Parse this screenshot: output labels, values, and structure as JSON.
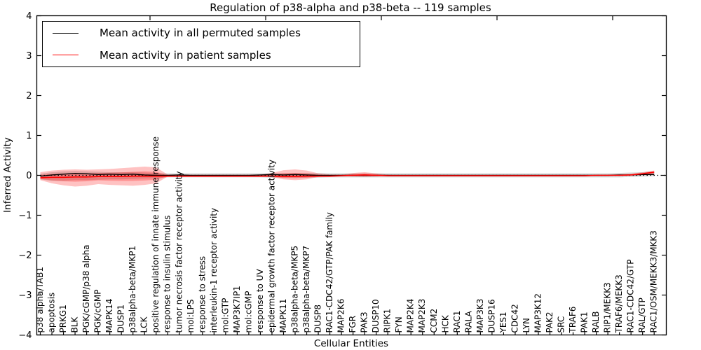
{
  "figure": {
    "title": "Regulation of p38-alpha and p38-beta -- 119 samples",
    "background_color": "#ffffff",
    "axis_color": "#000000"
  },
  "legend": {
    "items": [
      {
        "label": "Mean activity in all permuted samples",
        "color": "#000000"
      },
      {
        "label": "Mean activity in patient samples",
        "color": "#ff0000"
      }
    ]
  },
  "chart_data": {
    "type": "line",
    "title": "Regulation of p38-alpha and p38-beta -- 119 samples",
    "xlabel": "Cellular Entities",
    "ylabel": "Inferred Activity",
    "ylim": [
      -4,
      4
    ],
    "ytick_labels": [
      "4",
      "3",
      "2",
      "1",
      "0",
      "−1",
      "−2",
      "−3",
      "−4"
    ],
    "ytick_values": [
      4,
      3,
      2,
      1,
      0,
      -1,
      -2,
      -3,
      -4
    ],
    "grid": false,
    "legend_position": "upper left",
    "zero_reference_line": 0,
    "categories": [
      "p38 alpha/TAB1",
      "apoptosis",
      "PRKG1",
      "BLK",
      "PGK/cGMP/p38 alpha",
      "PGK/cGMP",
      "MAPK14",
      "DUSP1",
      "p38alpha-beta/MKP1",
      "LCK",
      "positive regulation of innate immune response",
      "response to insulin stimulus",
      "tumor necrosis factor receptor activity",
      "mol:LPS",
      "response to stress",
      "interleukin-1 receptor activity",
      "mol:GTP",
      "MAP3K7IP1",
      "mol:cGMP",
      "response to UV",
      "epidermal growth factor receptor activity",
      "MAPK11",
      "p38alpha-beta/MKP5",
      "p38alpha-beta/MKP7",
      "DUSP8",
      "RAC1-CDC42/GTP/PAK family",
      "MAP2K6",
      "FGR",
      "PAK3",
      "DUSP10",
      "RIPK1",
      "FYN",
      "MAP2K4",
      "MAP2K3",
      "CCM2",
      "HCK",
      "RAC1",
      "RALA",
      "MAP3K3",
      "DUSP16",
      "YES1",
      "CDC42",
      "LYN",
      "MAP3K12",
      "PAK2",
      "SRC",
      "TRAF6",
      "PAK1",
      "RALB",
      "RIP1/MEKK3",
      "TRAF6/MEKK3",
      "RAC1-CDC42/GTP",
      "RAL/GTP",
      "RAC1/OSM/MEKK3/MKK3"
    ],
    "series": [
      {
        "name": "Mean activity in all permuted samples",
        "color": "#000000",
        "values": [
          -0.02,
          0.01,
          0.03,
          0.05,
          0.04,
          0.02,
          0.03,
          0.02,
          0.03,
          0.01,
          0.0,
          0.0,
          0.01,
          0.0,
          0.0,
          0.0,
          0.0,
          0.0,
          0.0,
          0.01,
          0.02,
          0.01,
          0.02,
          0.01,
          0.0,
          0.0,
          0.0,
          0.0,
          0.0,
          0.0,
          0.0,
          0.0,
          0.0,
          0.0,
          0.0,
          0.0,
          0.0,
          0.0,
          0.0,
          0.0,
          0.0,
          0.0,
          0.0,
          0.0,
          0.0,
          0.0,
          0.0,
          0.0,
          0.0,
          0.0,
          0.01,
          0.01,
          0.02,
          0.02
        ]
      },
      {
        "name": "Mean activity in patient samples",
        "color": "#ff0000",
        "values": [
          -0.06,
          -0.05,
          -0.05,
          -0.04,
          -0.04,
          -0.03,
          -0.03,
          -0.03,
          -0.02,
          -0.02,
          -0.02,
          -0.02,
          -0.02,
          -0.02,
          -0.02,
          -0.02,
          -0.02,
          -0.02,
          -0.02,
          -0.02,
          -0.02,
          -0.03,
          -0.03,
          -0.02,
          -0.02,
          -0.02,
          -0.01,
          0.0,
          0.01,
          0.0,
          -0.01,
          -0.01,
          -0.01,
          -0.01,
          -0.01,
          -0.01,
          -0.01,
          -0.01,
          -0.01,
          -0.01,
          -0.01,
          -0.01,
          -0.01,
          -0.01,
          -0.01,
          -0.01,
          -0.01,
          -0.01,
          0.0,
          0.0,
          0.0,
          0.01,
          0.04,
          0.08
        ]
      }
    ],
    "bands": [
      {
        "name": "patient-samples-spread",
        "color": "#ff0000",
        "opacity": 0.24,
        "upper": [
          0.08,
          0.12,
          0.14,
          0.15,
          0.14,
          0.15,
          0.16,
          0.18,
          0.2,
          0.22,
          0.2,
          0.02,
          0.02,
          0.01,
          0.01,
          0.01,
          0.01,
          0.01,
          0.01,
          0.015,
          0.06,
          0.13,
          0.15,
          0.12,
          0.05,
          0.02,
          0.02,
          0.06,
          0.08,
          0.05,
          0.02,
          0.015,
          0.015,
          0.015,
          0.015,
          0.015,
          0.015,
          0.015,
          0.015,
          0.015,
          0.015,
          0.015,
          0.015,
          0.015,
          0.015,
          0.015,
          0.015,
          0.015,
          0.02,
          0.02,
          0.03,
          0.04,
          0.08,
          0.12
        ],
        "lower": [
          -0.12,
          -0.2,
          -0.25,
          -0.28,
          -0.26,
          -0.22,
          -0.24,
          -0.25,
          -0.26,
          -0.24,
          -0.2,
          -0.03,
          -0.02,
          -0.02,
          -0.01,
          -0.01,
          -0.01,
          -0.01,
          -0.01,
          -0.015,
          -0.05,
          -0.1,
          -0.12,
          -0.1,
          -0.04,
          -0.02,
          -0.02,
          -0.03,
          -0.04,
          -0.03,
          -0.015,
          -0.015,
          -0.015,
          -0.015,
          -0.015,
          -0.015,
          -0.015,
          -0.015,
          -0.015,
          -0.015,
          -0.015,
          -0.015,
          -0.015,
          -0.015,
          -0.015,
          -0.015,
          -0.015,
          -0.015,
          -0.01,
          -0.01,
          -0.01,
          0.0,
          0.01,
          0.03
        ]
      },
      {
        "name": "permuted-samples-spread",
        "color": "#999999",
        "opacity": 0.38,
        "upper": [
          0.04,
          0.08,
          0.1,
          0.11,
          0.1,
          0.09,
          0.08,
          0.08,
          0.08,
          0.07,
          0.06,
          0.05,
          0.05,
          0.05,
          0.05,
          0.05,
          0.05,
          0.05,
          0.05,
          0.05,
          0.06,
          0.06,
          0.06,
          0.06,
          0.06,
          0.05,
          0.05,
          0.05,
          0.05,
          0.05,
          0.05,
          0.05,
          0.05,
          0.05,
          0.05,
          0.05,
          0.05,
          0.05,
          0.05,
          0.05,
          0.05,
          0.05,
          0.05,
          0.05,
          0.05,
          0.05,
          0.05,
          0.05,
          0.05,
          0.05,
          0.06,
          0.07,
          0.08,
          0.1
        ],
        "lower": [
          -0.1,
          -0.14,
          -0.14,
          -0.12,
          -0.12,
          -0.11,
          -0.1,
          -0.1,
          -0.09,
          -0.08,
          -0.07,
          -0.05,
          -0.05,
          -0.05,
          -0.05,
          -0.05,
          -0.05,
          -0.05,
          -0.05,
          -0.05,
          -0.06,
          -0.06,
          -0.06,
          -0.06,
          -0.06,
          -0.05,
          -0.05,
          -0.05,
          -0.05,
          -0.05,
          -0.05,
          -0.05,
          -0.05,
          -0.05,
          -0.05,
          -0.05,
          -0.05,
          -0.05,
          -0.05,
          -0.05,
          -0.05,
          -0.05,
          -0.05,
          -0.05,
          -0.05,
          -0.05,
          -0.05,
          -0.05,
          -0.05,
          -0.05,
          -0.05,
          -0.04,
          -0.03,
          -0.02
        ]
      }
    ]
  }
}
